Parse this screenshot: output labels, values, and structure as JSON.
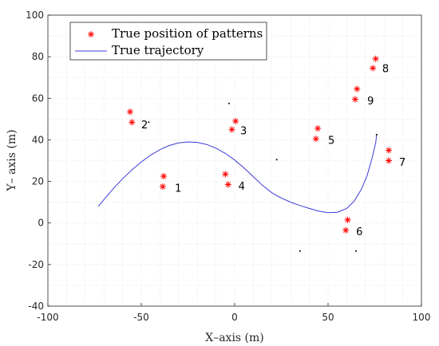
{
  "chart_data": {
    "type": "scatter",
    "xlabel": "X–axis (m)",
    "ylabel": "Y– axis (m)",
    "xlim": [
      -100,
      100
    ],
    "ylim": [
      -40,
      100
    ],
    "xticks": [
      -100,
      -50,
      0,
      50,
      100
    ],
    "yticks": [
      -40,
      -20,
      0,
      20,
      40,
      60,
      80,
      100
    ],
    "grid": true,
    "grid_style": "dotted",
    "legend_placement": "top-left",
    "legend": [
      {
        "label": "True position of patterns",
        "marker": "asterisk",
        "color": "#ff0000"
      },
      {
        "label": "True trajectory",
        "marker": "line",
        "color": "#3b3bd9"
      }
    ],
    "patterns": [
      {
        "label": "1",
        "points": [
          [
            -38,
            22.5
          ],
          [
            -38.5,
            17.5
          ]
        ],
        "label_pos": [
          -32,
          17
        ]
      },
      {
        "label": "2",
        "points": [
          [
            -56,
            53.5
          ],
          [
            -55,
            48.5
          ]
        ],
        "label_pos": [
          -50,
          47.5
        ]
      },
      {
        "label": "3",
        "points": [
          [
            0.5,
            49
          ],
          [
            -1.5,
            45
          ]
        ],
        "label_pos": [
          3,
          44.5
        ]
      },
      {
        "label": "4",
        "points": [
          [
            -5,
            23.5
          ],
          [
            -3.5,
            18.5
          ]
        ],
        "label_pos": [
          2,
          18
        ]
      },
      {
        "label": "5",
        "points": [
          [
            44.5,
            45.5
          ],
          [
            43.5,
            40.5
          ]
        ],
        "label_pos": [
          50,
          40
        ]
      },
      {
        "label": "6",
        "points": [
          [
            60.5,
            1.5
          ],
          [
            59.5,
            -3.5
          ]
        ],
        "label_pos": [
          65,
          -4
        ]
      },
      {
        "label": "7",
        "points": [
          [
            82.5,
            35
          ],
          [
            82.5,
            30
          ]
        ],
        "label_pos": [
          88,
          29.5
        ]
      },
      {
        "label": "8",
        "points": [
          [
            75.5,
            79
          ],
          [
            74,
            74.5
          ]
        ],
        "label_pos": [
          79,
          74.5
        ]
      },
      {
        "label": "9",
        "points": [
          [
            65.5,
            64.5
          ],
          [
            64.5,
            59.5
          ]
        ],
        "label_pos": [
          71,
          59
        ]
      }
    ],
    "extra_points": [
      [
        -3,
        57.5
      ],
      [
        -46,
        48.5
      ],
      [
        22.5,
        30.5
      ],
      [
        35,
        -13.5
      ],
      [
        65,
        -13.5
      ],
      [
        76,
        42.5
      ]
    ],
    "trajectory_color": "#3b3bd9",
    "trajectory": [
      [
        -73,
        8
      ],
      [
        -70,
        11.3
      ],
      [
        -65,
        16.5
      ],
      [
        -60,
        21.3
      ],
      [
        -55,
        25.6
      ],
      [
        -50,
        29.4
      ],
      [
        -45,
        32.6
      ],
      [
        -40,
        35.3
      ],
      [
        -35,
        37.3
      ],
      [
        -30,
        38.5
      ],
      [
        -25,
        39
      ],
      [
        -20,
        38.8
      ],
      [
        -15,
        37.8
      ],
      [
        -10,
        36
      ],
      [
        -5,
        33.5
      ],
      [
        0,
        30.3
      ],
      [
        5,
        26.5
      ],
      [
        10,
        22.3
      ],
      [
        15,
        18
      ],
      [
        20,
        14.5
      ],
      [
        25,
        12
      ],
      [
        30,
        10
      ],
      [
        35,
        8.4
      ],
      [
        40,
        7
      ],
      [
        45,
        5.7
      ],
      [
        50,
        5
      ],
      [
        55,
        5.2
      ],
      [
        60,
        7
      ],
      [
        64,
        10.5
      ],
      [
        68,
        16.5
      ],
      [
        71,
        23
      ],
      [
        73.5,
        31
      ],
      [
        75.5,
        38.5
      ],
      [
        76,
        42.5
      ]
    ]
  }
}
